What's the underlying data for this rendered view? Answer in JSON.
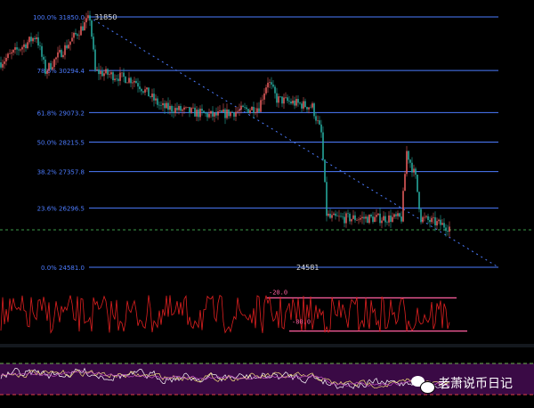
{
  "chart_data": {
    "type": "candlestick",
    "title": "",
    "fib_levels": [
      {
        "label": "100.0% 31850.0",
        "price": 31850.0,
        "color": "#4d7cff"
      },
      {
        "label": "78.6% 30294.4",
        "price": 30294.4,
        "color": "#4d7cff"
      },
      {
        "label": "61.8% 29073.2",
        "price": 29073.2,
        "color": "#4d7cff"
      },
      {
        "label": "50.0% 28215.5",
        "price": 28215.5,
        "color": "#4d7cff"
      },
      {
        "label": "38.2% 27357.8",
        "price": 27357.8,
        "color": "#4d7cff"
      },
      {
        "label": "23.6% 26296.5",
        "price": 26296.5,
        "color": "#4d7cff"
      },
      {
        "label": "0.0% 24581.0",
        "price": 24581.0,
        "color": "#4d7cff"
      }
    ],
    "high_label": "31850",
    "low_label": "24581",
    "price_range": [
      24581,
      31850
    ],
    "current_price": 25667,
    "price_path": [
      [
        0,
        30531
      ],
      [
        20,
        31307
      ],
      [
        25,
        30272
      ],
      [
        50,
        31824
      ],
      [
        53,
        30272
      ],
      [
        75,
        30013
      ],
      [
        90,
        29237
      ],
      [
        120,
        28978
      ],
      [
        145,
        29237
      ],
      [
        150,
        30013
      ],
      [
        155,
        29460
      ],
      [
        175,
        29237
      ],
      [
        180,
        28461
      ],
      [
        183,
        26133
      ],
      [
        185,
        26004
      ],
      [
        225,
        26004
      ],
      [
        228,
        27944
      ],
      [
        233,
        27168
      ],
      [
        236,
        26004
      ],
      [
        252,
        25745
      ]
    ],
    "up_color": "#e05a5a",
    "down_color": "#26a69a",
    "oscillator": {
      "upper_label": "-20.0",
      "lower_label": "-80.0",
      "upper": -20,
      "lower": -80,
      "range": [
        -100,
        0
      ],
      "line_color": "#e02020",
      "level_color": "#ff5fa0"
    },
    "bottom_indicator": {
      "band_color": "#3a0a45",
      "upper_line_color": "#6ab04c",
      "lower_line_color": "#e0404a",
      "series_colors": [
        "#ffffff",
        "#f5e27a",
        "#c050c0"
      ]
    }
  },
  "watermark": {
    "text": "老萧说币日记"
  }
}
